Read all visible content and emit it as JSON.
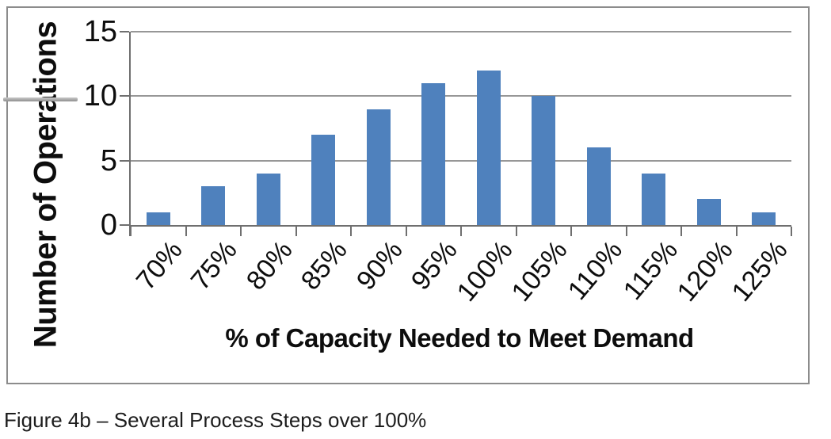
{
  "chart_data": {
    "type": "bar",
    "categories": [
      "70%",
      "75%",
      "80%",
      "85%",
      "90%",
      "95%",
      "100%",
      "105%",
      "110%",
      "115%",
      "120%",
      "125%"
    ],
    "values": [
      1,
      3,
      4,
      7,
      9,
      11,
      12,
      10,
      6,
      4,
      2,
      1
    ],
    "title": "",
    "xlabel": "% of Capacity Needed to Meet Demand",
    "ylabel": "Number of Operations",
    "ylim": [
      0,
      15
    ],
    "yticks": [
      0,
      5,
      10,
      15
    ],
    "grid": true,
    "legend_position": "none",
    "bar_color": "#4f81bd"
  },
  "caption": "Figure 4b – Several Process Steps over 100%",
  "colors": {
    "bar": "#4f81bd",
    "gridline": "#979797",
    "axis": "#6f6f6f",
    "frame_border": "#8c8c8c",
    "text": "#0d0d0d",
    "background": "#ffffff"
  }
}
